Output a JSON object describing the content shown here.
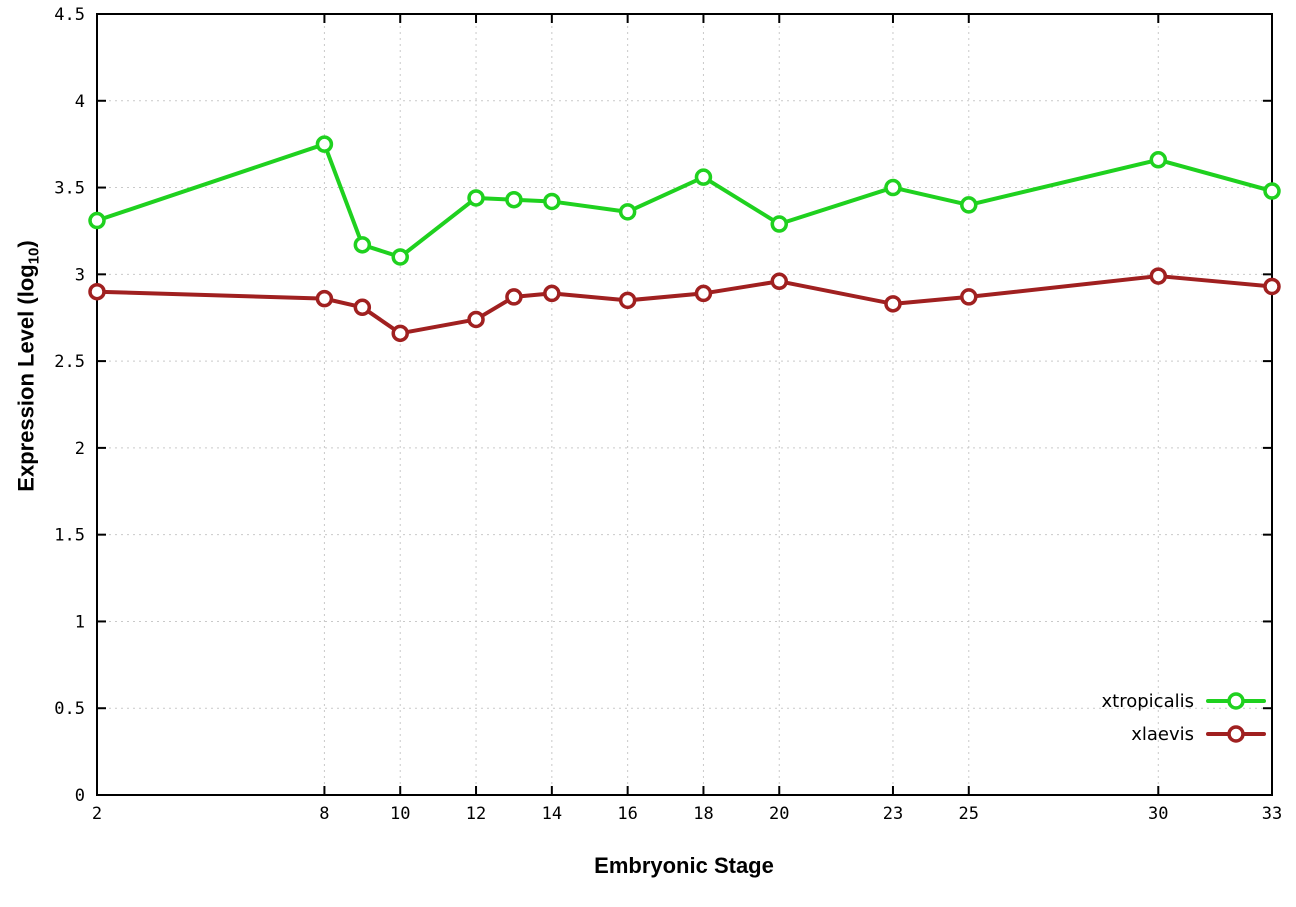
{
  "figure": {
    "background": "#ffffff"
  },
  "chart_data": {
    "type": "line",
    "title": "",
    "xlabel": "Embryonic Stage",
    "ylabel": "Expression Level (log10)",
    "ylabel_parts": {
      "prefix": "Expression Level (log",
      "sub": "10",
      "suffix": ")"
    },
    "x": [
      2,
      8,
      9,
      10,
      12,
      13,
      14,
      16,
      18,
      20,
      23,
      25,
      30,
      33
    ],
    "series": [
      {
        "name": "xtropicalis",
        "color": "#1fd11f",
        "values": [
          3.31,
          3.75,
          3.17,
          3.1,
          3.44,
          3.43,
          3.42,
          3.36,
          3.56,
          3.29,
          3.5,
          3.4,
          3.66,
          3.48
        ]
      },
      {
        "name": "xlaevis",
        "color": "#a02020",
        "values": [
          2.9,
          2.86,
          2.81,
          2.66,
          2.74,
          2.87,
          2.89,
          2.85,
          2.89,
          2.96,
          2.83,
          2.87,
          2.99,
          2.93
        ]
      }
    ],
    "xlim": [
      2,
      33
    ],
    "ylim": [
      0,
      4.5
    ],
    "xticks": [
      2,
      8,
      10,
      12,
      14,
      16,
      18,
      20,
      23,
      25,
      30,
      33
    ],
    "xtick_labels": [
      "2",
      "8",
      "10",
      "12",
      "14",
      "16",
      "18",
      "20",
      "23",
      "25",
      "30",
      "33"
    ],
    "yticks": [
      0,
      0.5,
      1,
      1.5,
      2,
      2.5,
      3,
      3.5,
      4,
      4.5
    ],
    "ytick_labels": [
      "0",
      "0.5",
      "1",
      "1.5",
      "2",
      "2.5",
      "3",
      "3.5",
      "4",
      "4.5"
    ],
    "grid": true,
    "grid_color": "#c9c9c9",
    "border_color": "#000000",
    "legend_position": "bottom-right",
    "legend": [
      "xtropicalis",
      "xlaevis"
    ],
    "marker": "open-circle"
  }
}
